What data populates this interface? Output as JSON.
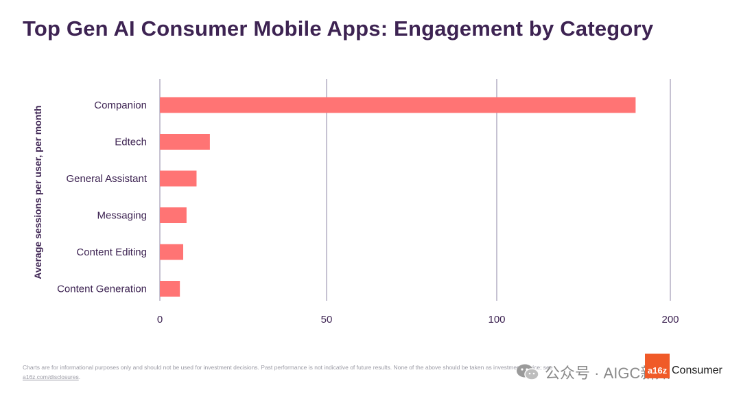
{
  "chart_data": {
    "type": "bar",
    "orientation": "horizontal",
    "title": "Top Gen AI Consumer Mobile Apps: Engagement by Category",
    "xlabel": "",
    "ylabel": "Average sessions per user, per month",
    "categories": [
      "Companion",
      "Edtech",
      "General Assistant",
      "Messaging",
      "Content Editing",
      "Content Generation"
    ],
    "values": [
      180,
      15,
      11,
      8,
      7,
      6
    ],
    "xticks": [
      "0",
      "50",
      "100",
      "200"
    ],
    "xtick_values": [
      0,
      50,
      100,
      200
    ],
    "bar_color": "#ff7474",
    "grid_color": "#8e86a6"
  },
  "footer": {
    "disclaimer": "Charts are for informational purposes only and should not be used for investment decisions. Past performance is not indicative of future results. None of the above should be taken as investment advice; see",
    "link": "a16z.com/disclosures",
    "end": "."
  },
  "watermark": {
    "text": "公众号 · AIGC新知"
  },
  "brand": {
    "logo": "a16z",
    "name": "Consumer"
  },
  "colors": {
    "title": "#3d2352",
    "accent": "#f05a28"
  }
}
